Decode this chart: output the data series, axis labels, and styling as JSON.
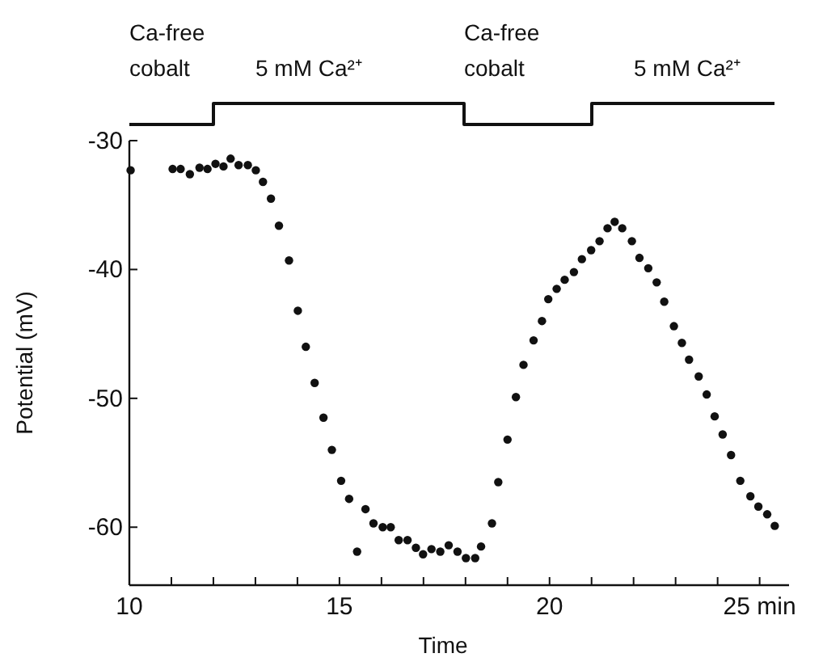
{
  "chart_data": {
    "type": "scatter",
    "xlabel": "Time",
    "ylabel": "Potential (mV)",
    "xlim": [
      10,
      25.7
    ],
    "ylim": [
      -64.5,
      -30
    ],
    "xticks": [
      10,
      {
        "value": 11,
        "label": null
      },
      {
        "value": 12,
        "label": null
      },
      {
        "value": 13,
        "label": null
      },
      {
        "value": 14,
        "label": null
      },
      15,
      {
        "value": 16,
        "label": null
      },
      {
        "value": 17,
        "label": null
      },
      {
        "value": 18,
        "label": null
      },
      {
        "value": 19,
        "label": null
      },
      20,
      {
        "value": 21,
        "label": null
      },
      {
        "value": 22,
        "label": null
      },
      {
        "value": 23,
        "label": null
      },
      {
        "value": 24,
        "label": null
      },
      {
        "value": 25,
        "label": "25 min"
      }
    ],
    "yticks": [
      -30,
      -40,
      -50,
      -60
    ],
    "marker": "circle",
    "annotations": [
      "Ca-free\ncobalt",
      "5 mM Ca²⁺",
      "Ca-free\ncobalt",
      "5 mM Ca²⁺"
    ],
    "series": [
      {
        "color": "#111111",
        "x": [
          10.03,
          11.03,
          11.22,
          11.44,
          11.67,
          11.86,
          12.05,
          12.24,
          12.41,
          12.6,
          12.82,
          13.01,
          13.18,
          13.37,
          13.56,
          13.8,
          14.01,
          14.2,
          14.41,
          14.62,
          14.82,
          15.04,
          15.23,
          15.42,
          15.62,
          15.81,
          16.03,
          16.22,
          16.41,
          16.62,
          16.82,
          16.99,
          17.19,
          17.4,
          17.6,
          17.81,
          18.01,
          18.23,
          18.37,
          18.63,
          18.78,
          19.0,
          19.2,
          19.38,
          19.62,
          19.82,
          19.97,
          20.17,
          20.36,
          20.58,
          20.77,
          20.99,
          21.19,
          21.38,
          21.55,
          21.73,
          21.96,
          22.14,
          22.35,
          22.55,
          22.73,
          22.96,
          23.15,
          23.32,
          23.55,
          23.74,
          23.93,
          24.12,
          24.32,
          24.54,
          24.78,
          24.97,
          25.18,
          25.36
        ],
        "values": [
          -32.3,
          -32.2,
          -32.2,
          -32.6,
          -32.1,
          -32.2,
          -31.8,
          -32.0,
          -31.4,
          -31.9,
          -31.9,
          -32.3,
          -33.2,
          -34.5,
          -36.6,
          -39.3,
          -43.2,
          -46.0,
          -48.8,
          -51.5,
          -54.0,
          -56.4,
          -57.8,
          -61.9,
          -58.6,
          -59.7,
          -60.0,
          -60.0,
          -61.0,
          -61.0,
          -61.6,
          -62.1,
          -61.7,
          -61.9,
          -61.4,
          -61.9,
          -62.4,
          -62.4,
          -61.5,
          -59.7,
          -56.5,
          -53.2,
          -49.9,
          -47.4,
          -45.5,
          -44.0,
          -42.3,
          -41.5,
          -40.8,
          -40.2,
          -39.2,
          -38.5,
          -37.8,
          -36.8,
          -36.3,
          -36.8,
          -37.8,
          -39.1,
          -39.9,
          -41.0,
          -42.5,
          -44.4,
          -45.7,
          -47.0,
          -48.3,
          -49.7,
          -51.4,
          -52.8,
          -54.4,
          -56.4,
          -57.6,
          -58.4,
          -59.0,
          -59.9
        ]
      }
    ]
  }
}
